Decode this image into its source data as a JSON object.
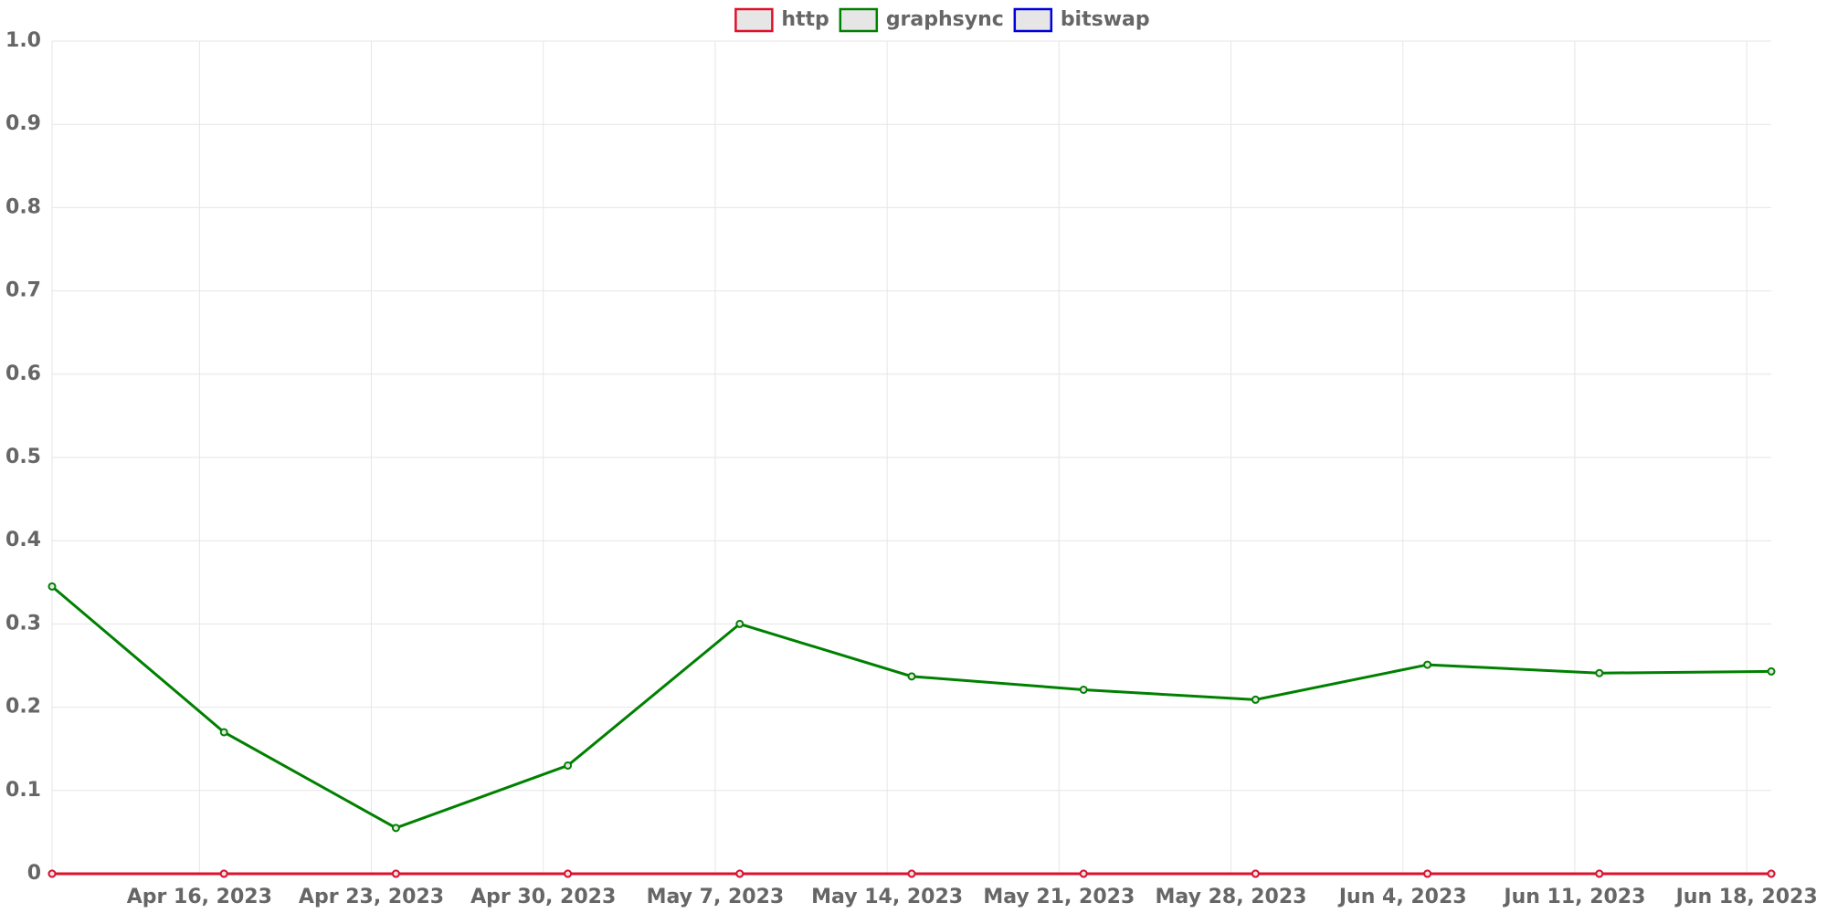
{
  "chart_data": {
    "type": "line",
    "x": [
      "2023-04-10",
      "2023-04-17",
      "2023-04-24",
      "2023-05-01",
      "2023-05-08",
      "2023-05-15",
      "2023-05-22",
      "2023-05-29",
      "2023-06-05",
      "2023-06-12",
      "2023-06-19"
    ],
    "series": [
      {
        "name": "bitswap",
        "color": "#0000dd",
        "values": [
          0,
          0,
          0,
          0,
          0,
          0,
          0,
          0,
          0,
          0,
          0
        ]
      },
      {
        "name": "graphsync",
        "color": "#008000",
        "values": [
          0.345,
          0.17,
          0.055,
          0.13,
          0.3,
          0.237,
          0.221,
          0.209,
          0.251,
          0.241,
          0.243
        ]
      },
      {
        "name": "http",
        "color": "#e0102a",
        "values": [
          0,
          0,
          0,
          0,
          0,
          0,
          0,
          0,
          0,
          0,
          0
        ]
      }
    ],
    "legend_order": [
      "http",
      "graphsync",
      "bitswap"
    ],
    "xlim": [
      "2023-04-10",
      "2023-06-19"
    ],
    "xticks": [
      {
        "value": "2023-04-16",
        "label": "Apr 16, 2023"
      },
      {
        "value": "2023-04-23",
        "label": "Apr 23, 2023"
      },
      {
        "value": "2023-04-30",
        "label": "Apr 30, 2023"
      },
      {
        "value": "2023-05-07",
        "label": "May 7, 2023"
      },
      {
        "value": "2023-05-14",
        "label": "May 14, 2023"
      },
      {
        "value": "2023-05-21",
        "label": "May 21, 2023"
      },
      {
        "value": "2023-05-28",
        "label": "May 28, 2023"
      },
      {
        "value": "2023-06-04",
        "label": "Jun 4, 2023"
      },
      {
        "value": "2023-06-11",
        "label": "Jun 11, 2023"
      },
      {
        "value": "2023-06-18",
        "label": "Jun 18, 2023"
      }
    ],
    "ylim": [
      0,
      1
    ],
    "yticks": [
      0,
      0.1,
      0.2,
      0.3,
      0.4,
      0.5,
      0.6,
      0.7,
      0.8,
      0.9,
      {
        "value": 1,
        "label": "1.0"
      }
    ],
    "grid": true,
    "legend": "top"
  }
}
